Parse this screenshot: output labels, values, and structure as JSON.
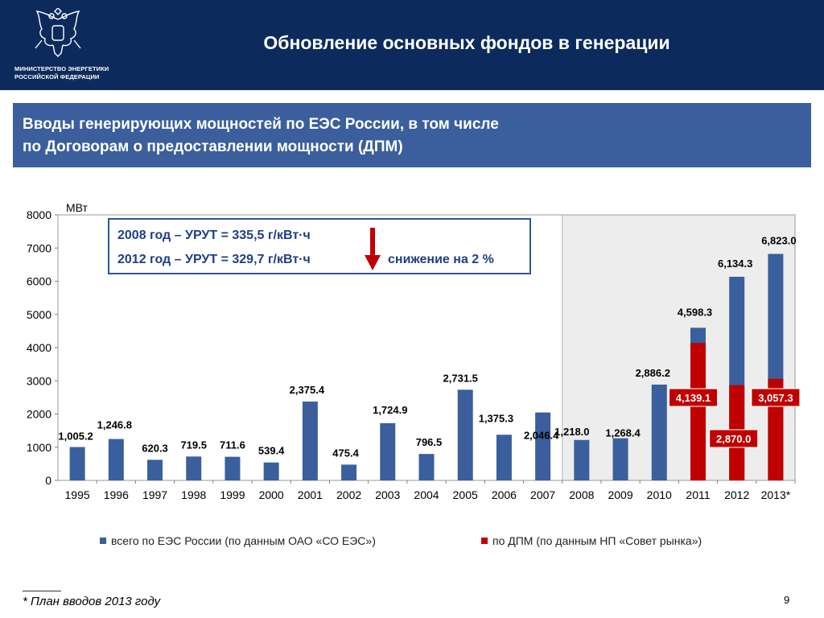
{
  "header": {
    "ministry_line1": "МИНИСТЕРСТВО ЭНЕРГЕТИКИ",
    "ministry_line2": "РОССИЙСКОЙ ФЕДЕРАЦИИ",
    "title": "Обновление основных фондов в генерации",
    "emblem_icon": "double-headed-eagle-icon"
  },
  "subtitle": {
    "line1": "Вводы генерирующих мощностей по ЕЭС России, в том числе",
    "line2": "по Договорам о предоставлении мощности (ДПМ)"
  },
  "callout": {
    "line1": "2008 год – УРУТ = 335,5 г/кВт·ч",
    "line2": "2012 год – УРУТ = 329,7 г/кВт·ч",
    "decrease": "снижение на 2 %",
    "arrow_icon": "down-arrow-icon",
    "arrow_color": "#c00000"
  },
  "chart_data": {
    "type": "bar",
    "unit_label": "МВт",
    "ylim": [
      0,
      8000
    ],
    "yticks": [
      0,
      1000,
      2000,
      3000,
      4000,
      5000,
      6000,
      7000,
      8000
    ],
    "categories": [
      "1995",
      "1996",
      "1997",
      "1998",
      "1999",
      "2000",
      "2001",
      "2002",
      "2003",
      "2004",
      "2005",
      "2006",
      "2007",
      "2008",
      "2009",
      "2010",
      "2011",
      "2012",
      "2013*"
    ],
    "series": [
      {
        "name": "всего по ЕЭС России (по данным ОАО «СО ЕЭС»)",
        "color": "#3a5f9c",
        "values": [
          1005.2,
          1246.8,
          620.3,
          719.5,
          711.6,
          539.4,
          2375.4,
          475.4,
          1724.9,
          796.5,
          2731.5,
          1375.3,
          2046.4,
          1218.0,
          1268.4,
          2886.2,
          4598.3,
          6134.3,
          6823.0
        ],
        "labels": [
          "1,005.2",
          "1,246.8",
          "620.3",
          "719.5",
          "711.6",
          "539.4",
          "2,375.4",
          "475.4",
          "1,724.9",
          "796.5",
          "2,731.5",
          "1,375.3",
          "2,046.4",
          "1,218.0",
          "1,268.4",
          "2,886.2",
          "4,598.3",
          "6,134.3",
          "6,823.0"
        ]
      },
      {
        "name": "по ДПМ (по данным НП «Совет рынка»)",
        "color": "#c00000",
        "x": [
          "2011",
          "2012",
          "2013*"
        ],
        "values": [
          4139.1,
          2870.0,
          3057.3
        ],
        "labels": [
          "4,139.1",
          "2,870.0",
          "3,057.3"
        ]
      }
    ],
    "highlight_range": [
      "2008",
      "2013*"
    ],
    "grid": false,
    "legend_position": "bottom"
  },
  "footnote": "* План вводов 2013 году",
  "page_number": "9"
}
